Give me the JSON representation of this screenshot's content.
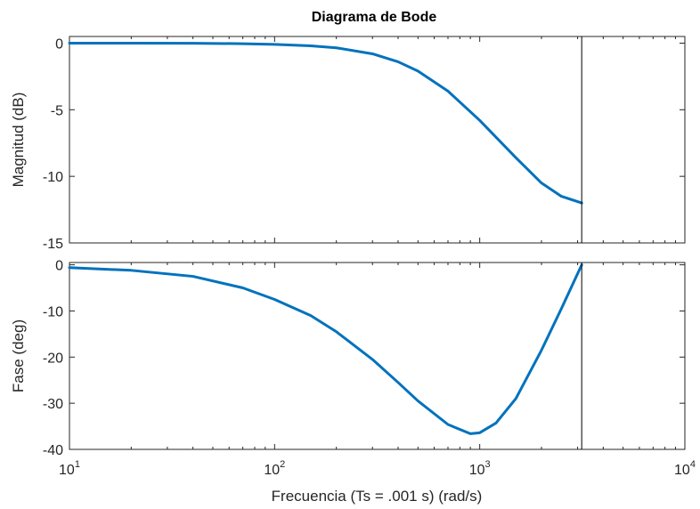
{
  "chart_data": {
    "type": "line",
    "title": "Diagrama de Bode",
    "xlabel": "Frecuencia (Ts = .001 s)  (rad/s)",
    "x_scale": "log",
    "xlim": [
      10,
      10000
    ],
    "x_ticks": [
      {
        "value": 10,
        "base": "10",
        "exp": "1"
      },
      {
        "value": 100,
        "base": "10",
        "exp": "2"
      },
      {
        "value": 1000,
        "base": "10",
        "exp": "3"
      },
      {
        "value": 10000,
        "base": "10",
        "exp": "4"
      }
    ],
    "nyquist_frequency": 3141.6,
    "color": "#0072BD",
    "grid": false,
    "panels": [
      {
        "name": "magnitude",
        "ylabel": "Magnitud (dB)",
        "ylim": [
          -15,
          0.5
        ],
        "y_ticks": [
          0,
          -5,
          -10,
          -15
        ],
        "x": [
          10,
          20,
          40,
          70,
          100,
          150,
          200,
          300,
          400,
          500,
          700,
          1000,
          1500,
          2000,
          2500,
          3141.6
        ],
        "y": [
          0,
          0,
          -0.01,
          -0.04,
          -0.09,
          -0.2,
          -0.35,
          -0.8,
          -1.4,
          -2.1,
          -3.6,
          -5.8,
          -8.6,
          -10.5,
          -11.5,
          -12.0
        ]
      },
      {
        "name": "phase",
        "ylabel": "Fase (deg)",
        "ylim": [
          -40,
          0.5
        ],
        "y_ticks": [
          0,
          -10,
          -20,
          -30,
          -40
        ],
        "x": [
          10,
          20,
          40,
          70,
          100,
          150,
          200,
          300,
          400,
          500,
          700,
          900,
          1000,
          1200,
          1500,
          2000,
          2500,
          3141.6
        ],
        "y": [
          -0.6,
          -1.2,
          -2.5,
          -5.0,
          -7.5,
          -11.0,
          -14.5,
          -20.5,
          -25.5,
          -29.5,
          -34.6,
          -36.6,
          -36.4,
          -34.3,
          -29.0,
          -18.5,
          -9.5,
          0
        ]
      }
    ]
  }
}
